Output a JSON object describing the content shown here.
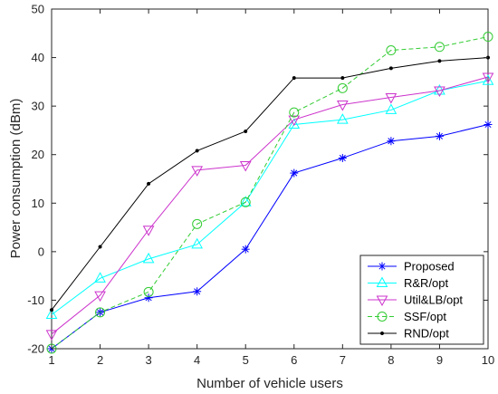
{
  "chart_data": {
    "type": "line",
    "title": "",
    "xlabel": "Number of vehicle users",
    "ylabel": "Power consumption (dBm)",
    "xlim": [
      1,
      10
    ],
    "ylim": [
      -20,
      50
    ],
    "xticks": [
      1,
      2,
      3,
      4,
      5,
      6,
      7,
      8,
      9,
      10
    ],
    "yticks": [
      -20,
      -10,
      0,
      10,
      20,
      30,
      40,
      50
    ],
    "xtick_labels": [
      "1",
      "2",
      "3",
      "4",
      "5",
      "6",
      "7",
      "8",
      "9",
      "10"
    ],
    "ytick_labels": [
      "-20",
      "-10",
      "0",
      "10",
      "20",
      "30",
      "40",
      "50"
    ],
    "grid": false,
    "legend_position": "bottom-right",
    "x": [
      1,
      2,
      3,
      4,
      5,
      6,
      7,
      8,
      9,
      10
    ],
    "series": [
      {
        "name": "Proposed",
        "color": "#0000ff",
        "marker": "asterisk",
        "dash": "solid",
        "values": [
          -20,
          -12.5,
          -9.5,
          -8.2,
          0.5,
          16.2,
          19.3,
          22.8,
          23.8,
          26.2
        ]
      },
      {
        "name": "R&R/opt",
        "color": "#00ffff",
        "marker": "triangle-up",
        "dash": "solid",
        "values": [
          -13,
          -5.5,
          -1.5,
          1.5,
          10.2,
          26.2,
          27.2,
          29.2,
          33.2,
          35.2
        ]
      },
      {
        "name": "Util&LB/opt",
        "color": "#cc33cc",
        "marker": "triangle-down",
        "dash": "solid",
        "values": [
          -17,
          -9,
          4.5,
          16.8,
          17.8,
          27.2,
          30.3,
          31.8,
          33.2,
          36
        ]
      },
      {
        "name": "SSF/opt",
        "color": "#33cc33",
        "marker": "circle",
        "dash": "dashed",
        "values": [
          -20,
          -12.5,
          -8.3,
          5.7,
          10.2,
          28.7,
          33.7,
          41.5,
          42.2,
          44.3
        ]
      },
      {
        "name": "RND/opt",
        "color": "#000000",
        "marker": "dot",
        "dash": "solid",
        "values": [
          -12,
          1,
          14,
          20.8,
          24.8,
          35.8,
          35.8,
          37.8,
          39.3,
          40
        ]
      }
    ]
  }
}
